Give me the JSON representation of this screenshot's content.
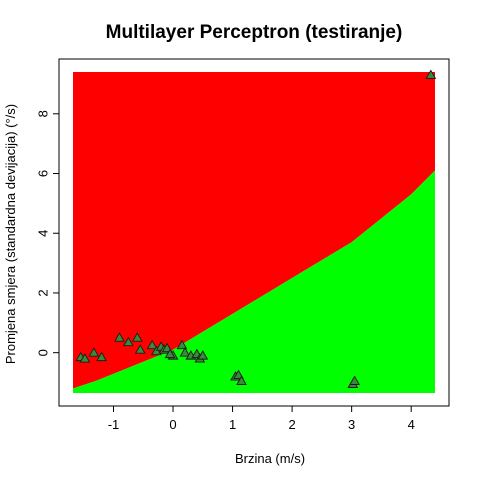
{
  "chart_data": {
    "type": "scatter",
    "title": "Multilayer Perceptron (testiranje)",
    "xlabel": "Brzina (m/s)",
    "ylabel": "Promjena smjera (standardna devijacija) (°/s)",
    "xlim": [
      -1.68,
      4.4
    ],
    "ylim": [
      -1.35,
      9.4
    ],
    "xticks": [
      -1,
      0,
      1,
      2,
      3,
      4
    ],
    "yticks": [
      0,
      2,
      4,
      6,
      8
    ],
    "grid": false,
    "regions": [
      {
        "class": "upper",
        "color": "#ff0000"
      },
      {
        "class": "lower",
        "color": "#00ff00"
      }
    ],
    "decision_boundary": {
      "x": [
        -1.68,
        -1.3,
        0,
        1,
        2,
        3,
        4,
        4.4
      ],
      "y": [
        -1.2,
        -0.95,
        0.1,
        1.3,
        2.5,
        3.7,
        5.3,
        6.1
      ]
    },
    "points": {
      "marker": "triangle",
      "color": "#3a8a3a",
      "x": [
        -1.55,
        -1.48,
        -1.33,
        -1.2,
        -0.9,
        -0.75,
        -0.6,
        -0.55,
        -0.35,
        -0.28,
        -0.2,
        -0.15,
        -0.1,
        0,
        0.15,
        0.2,
        0.3,
        0.4,
        0.45,
        0.5,
        -0.05,
        1.05,
        1.1,
        1.15,
        3.02,
        3.05,
        4.33
      ],
      "y": [
        -0.15,
        -0.2,
        0.0,
        -0.15,
        0.5,
        0.35,
        0.5,
        0.1,
        0.25,
        0.05,
        0.2,
        0.1,
        0.15,
        -0.1,
        0.25,
        0.0,
        -0.1,
        -0.05,
        -0.2,
        -0.1,
        -0.05,
        -0.8,
        -0.75,
        -0.95,
        -1.05,
        -0.95,
        9.3
      ]
    }
  }
}
